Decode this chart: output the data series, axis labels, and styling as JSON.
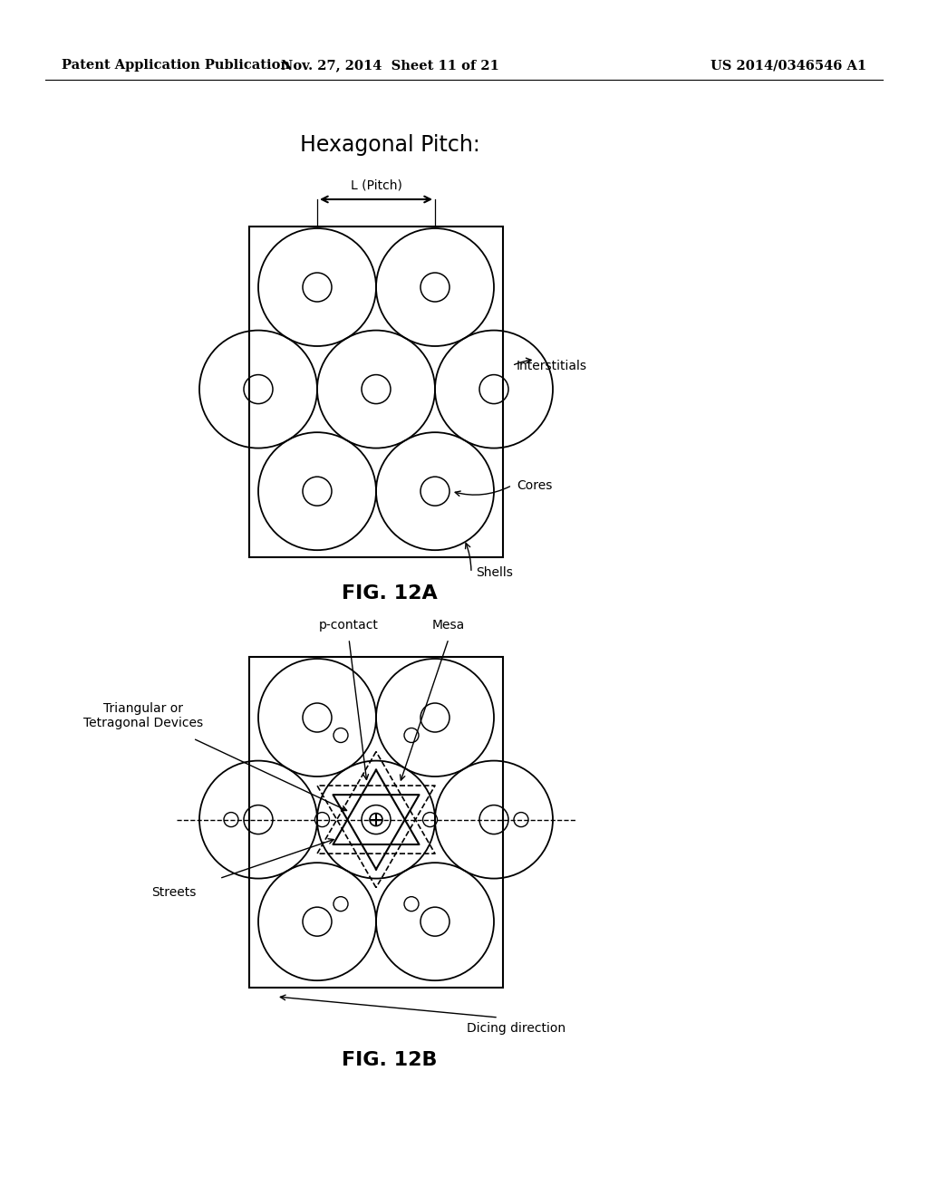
{
  "header_left": "Patent Application Publication",
  "header_mid": "Nov. 27, 2014  Sheet 11 of 21",
  "header_right": "US 2014/0346546 A1",
  "title_12a": "Hexagonal Pitch:",
  "fig12a_label": "FIG. 12A",
  "fig12b_label": "FIG. 12B",
  "pitch_label": "L (Pitch)",
  "label_interstitials": "Interstitials",
  "label_cores": "Cores",
  "label_shells": "Shells",
  "label_triangular": "Triangular or\nTetragonal Devices",
  "label_pcontact": "p-contact",
  "label_mesa": "Mesa",
  "label_streets": "Streets",
  "label_dicing": "Dicing direction",
  "bg_color": "#ffffff",
  "line_color": "#000000"
}
